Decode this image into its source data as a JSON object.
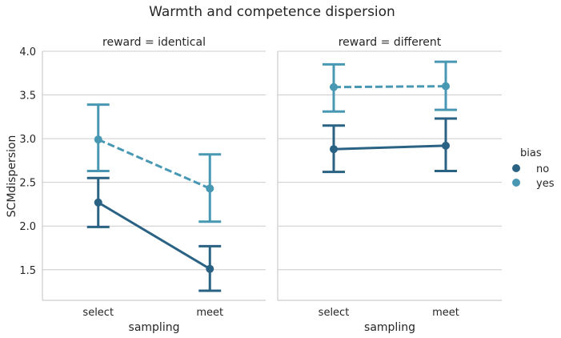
{
  "chart_data": {
    "type": "point",
    "title": "Warmth and competence dispersion",
    "ylabel": "SCMdispersion",
    "xlabel": "sampling",
    "ylim": [
      1.15,
      4.0
    ],
    "yticks": [
      "1.5",
      "2.0",
      "2.5",
      "3.0",
      "3.5",
      "4.0"
    ],
    "ytick_values": [
      1.5,
      2.0,
      2.5,
      3.0,
      3.5,
      4.0
    ],
    "categories": [
      "select",
      "meet"
    ],
    "grid": "horizontal",
    "legend": {
      "title": "bias",
      "placement": "right",
      "entries": [
        "no",
        "yes"
      ]
    },
    "colors": {
      "no": "#2a6283",
      "yes": "#4898b4"
    },
    "panels": [
      {
        "title": "reward = identical",
        "series": [
          {
            "name": "no",
            "values": [
              2.27,
              1.51
            ],
            "ci_low": [
              1.99,
              1.26
            ],
            "ci_high": [
              2.55,
              1.77
            ],
            "linestyle": "solid"
          },
          {
            "name": "yes",
            "values": [
              2.99,
              2.43
            ],
            "ci_low": [
              2.63,
              2.05
            ],
            "ci_high": [
              3.39,
              2.82
            ],
            "linestyle": "dashed"
          }
        ]
      },
      {
        "title": "reward = different",
        "series": [
          {
            "name": "no",
            "values": [
              2.88,
              2.92
            ],
            "ci_low": [
              2.62,
              2.63
            ],
            "ci_high": [
              3.15,
              3.23
            ],
            "linestyle": "solid"
          },
          {
            "name": "yes",
            "values": [
              3.59,
              3.6
            ],
            "ci_low": [
              3.31,
              3.33
            ],
            "ci_high": [
              3.85,
              3.88
            ],
            "linestyle": "dashed"
          }
        ]
      }
    ]
  }
}
